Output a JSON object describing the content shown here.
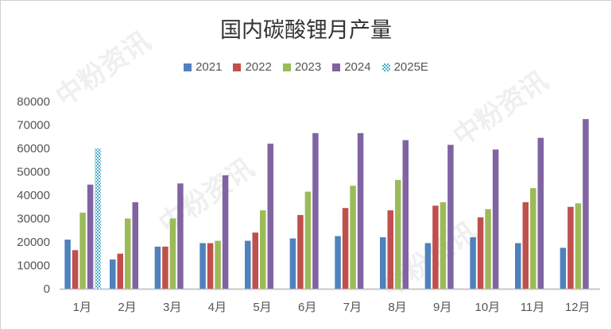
{
  "chart_data": {
    "type": "bar",
    "title": "国内碳酸锂月产量",
    "xlabel": "",
    "ylabel": "",
    "ylim": [
      0,
      80000
    ],
    "yticks": [
      "0",
      "10000",
      "20000",
      "30000",
      "40000",
      "50000",
      "60000",
      "70000",
      "80000"
    ],
    "categories": [
      "1月",
      "2月",
      "3月",
      "4月",
      "5月",
      "6月",
      "7月",
      "8月",
      "9月",
      "10月",
      "11月",
      "12月"
    ],
    "legend_position": "top",
    "grid": false,
    "series": [
      {
        "name": "2021",
        "color": "#4f81bd",
        "values": [
          21000,
          12500,
          18000,
          19500,
          20500,
          21500,
          22500,
          22000,
          19500,
          22000,
          19500,
          17500
        ]
      },
      {
        "name": "2022",
        "color": "#c0504d",
        "values": [
          16500,
          15000,
          18000,
          19500,
          24000,
          31500,
          34500,
          33500,
          35500,
          30500,
          37000,
          35000
        ]
      },
      {
        "name": "2023",
        "color": "#9bbb59",
        "values": [
          32500,
          30000,
          30000,
          20500,
          33500,
          41500,
          44000,
          46500,
          37000,
          34000,
          43000,
          36500
        ]
      },
      {
        "name": "2024",
        "color": "#8064a2",
        "values": [
          44500,
          37000,
          45000,
          48500,
          62000,
          66500,
          66500,
          63500,
          61500,
          59500,
          64500,
          72500
        ]
      },
      {
        "name": "2025E",
        "color": "#4bacc6",
        "pattern": "checker",
        "values": [
          60000,
          null,
          null,
          null,
          null,
          null,
          null,
          null,
          null,
          null,
          null,
          null
        ]
      }
    ]
  },
  "watermark": "中粉资讯"
}
